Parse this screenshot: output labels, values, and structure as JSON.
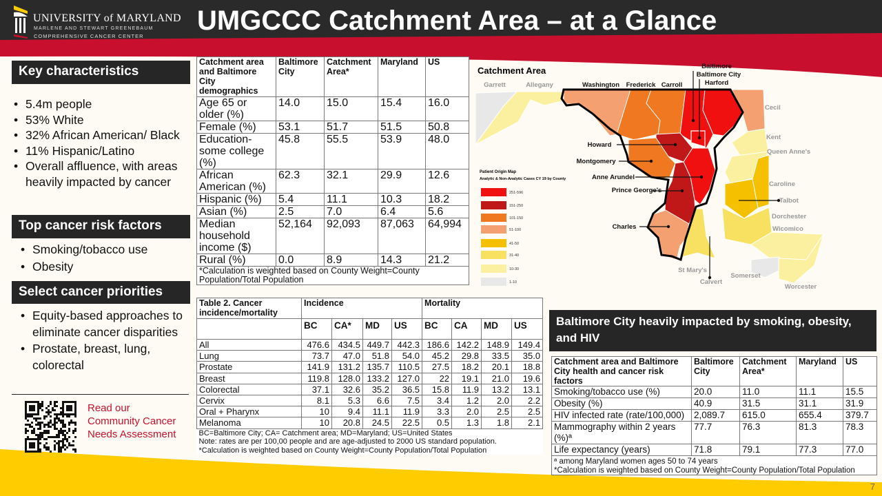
{
  "colors": {
    "header": "#2a2a2a",
    "accent_red": "#c8102e",
    "accent_yellow": "#ffcc00",
    "box": "#262626"
  },
  "logo": {
    "line1": "UNIVERSITY of MARYLAND",
    "line2": "MARLENE AND STEWART GREENEBAUM",
    "line3": "COMPREHENSIVE CANCER CENTER"
  },
  "title": "UMGCCC Catchment Area – at a Glance",
  "key": {
    "heading": "Key characteristics",
    "items": [
      "5.4m people",
      "53% White",
      "32% African American/ Black",
      "11% Hispanic/Latino",
      "Overall affluence, with areas heavily impacted by cancer"
    ]
  },
  "risk": {
    "heading": "Top cancer risk factors",
    "items": [
      "Smoking/tobacco use",
      "Obesity"
    ]
  },
  "priorities": {
    "heading": "Select cancer priorities",
    "items": [
      "Equity-based approaches to eliminate cancer disparities",
      "Prostate, breast, lung, colorectal"
    ]
  },
  "qr": {
    "link_text": "Read our Community Cancer Needs Assessment"
  },
  "demographics": {
    "headers": [
      "Catchment area and Baltimore City demographics",
      "Baltimore City",
      "Catchment Area*",
      "Maryland",
      "US"
    ],
    "rows": [
      [
        "Age 65 or older (%)",
        "14.0",
        "15.0",
        "15.4",
        "16.0"
      ],
      [
        "Female (%)",
        "53.1",
        "51.7",
        "51.5",
        "50.8"
      ],
      [
        "Education-some college (%)",
        "45.8",
        "55.5",
        "53.9",
        "48.0"
      ],
      [
        "African American (%)",
        "62.3",
        "32.1",
        "29.9",
        "12.6"
      ],
      [
        "Hispanic (%)",
        "5.4",
        "11.1",
        "10.3",
        "18.2"
      ],
      [
        "Asian (%)",
        "2.5",
        "7.0",
        "6.4",
        "5.6"
      ],
      [
        "Median household income ($)",
        "52,164",
        "92,093",
        "87,063",
        "64,994"
      ],
      [
        "Rural (%)",
        "0.0",
        "8.9",
        "14.3",
        "21.2"
      ]
    ],
    "footnote": "*Calculation is weighted based on County Weight=County Population/Total Population"
  },
  "cancer": {
    "title": "Table 2. Cancer incidence/mortality",
    "group_incidence": "Incidence",
    "group_mortality": "Mortality",
    "subheaders": [
      "BC",
      "CA*",
      "MD",
      "US",
      "BC",
      "CA",
      "MD",
      "US"
    ],
    "rows": [
      [
        "All",
        "476.6",
        "434.5",
        "449.7",
        "442.3",
        "186.6",
        "142.2",
        "148.9",
        "149.4"
      ],
      [
        "Lung",
        "73.7",
        "47.0",
        "51.8",
        "54.0",
        "45.2",
        "29.8",
        "33.5",
        "35.0"
      ],
      [
        "Prostate",
        "141.9",
        "131.2",
        "135.7",
        "110.5",
        "27.5",
        "18.2",
        "20.1",
        "18.8"
      ],
      [
        "Breast",
        "119.8",
        "128.0",
        "133.2",
        "127.0",
        "22",
        "19.1",
        "21.0",
        "19.6"
      ],
      [
        "Colorectal",
        "37.1",
        "32.6",
        "35.2",
        "36.5",
        "15.8",
        "11.9",
        "13.2",
        "13.1"
      ],
      [
        "Cervix",
        "8.1",
        "5.3",
        "6.6",
        "7.5",
        "3.4",
        "1.2",
        "2.0",
        "2.2"
      ],
      [
        "Oral + Pharynx",
        "10",
        "9.4",
        "11.1",
        "11.9",
        "3.3",
        "2.0",
        "2.5",
        "2.5"
      ],
      [
        "Melanoma",
        "10",
        "20.8",
        "24.5",
        "22.5",
        "0.5",
        "1.3",
        "1.8",
        "2.1"
      ]
    ],
    "footnotes": [
      "BC=Baltimore City; CA= Catchment area; MD=Maryland; US=United States",
      "Note: rates are per 100,00 people and are age-adjusted to 2000 US standard population.",
      "*Calculation is weighted based on County Weight=County Population/Total Population"
    ]
  },
  "map": {
    "title": "Catchment Area",
    "legend_title": "Patient Origin Map",
    "legend_subtitle": "Analytic & Non-Analytic Cases CY 19 by County",
    "legend": [
      {
        "label": "251-596",
        "color": "#f01010"
      },
      {
        "label": "151-250",
        "color": "#c01818"
      },
      {
        "label": "101-150",
        "color": "#f07820"
      },
      {
        "label": "51-100",
        "color": "#f4a070"
      },
      {
        "label": "41-50",
        "color": "#f5c000"
      },
      {
        "label": "31-40",
        "color": "#f8e060"
      },
      {
        "label": "10-30",
        "color": "#fbf0a0"
      },
      {
        "label": "1-10",
        "color": "#e8e8e8"
      }
    ],
    "counties_catchment": [
      "Baltimore",
      "Baltimore City",
      "Harford",
      "Washington",
      "Frederick",
      "Carroll",
      "Howard",
      "Montgomery",
      "Anne Arundel",
      "Prince George's",
      "Charles"
    ],
    "counties_other": [
      "Garrett",
      "Allegany",
      "Cecil",
      "Kent",
      "Queen Anne's",
      "Caroline",
      "Talbot",
      "Dorchester",
      "Wicomico",
      "St Mary's",
      "Calvert",
      "Somerset",
      "Worcester"
    ]
  },
  "baltimore_box": "Baltimore City heavily impacted by smoking, obesity, and HIV",
  "risk_table": {
    "headers": [
      "Catchment area and Baltimore City health and cancer risk factors",
      "Baltimore City",
      "Catchment Area*",
      "Maryland",
      "US"
    ],
    "rows": [
      [
        "Smoking/tobacco use (%)",
        "20.0",
        "11.0",
        "11.1",
        "15.5"
      ],
      [
        "Obesity (%)",
        "40.9",
        "31.5",
        "31.1",
        "31.9"
      ],
      [
        "HIV infected rate (rate/100,000)",
        "2,089.7",
        "615.0",
        "655.4",
        "379.7"
      ],
      [
        "Mammography within 2 years (%)ª",
        "77.7",
        "76.3",
        "81.3",
        "78.3"
      ],
      [
        "Life expectancy (years)",
        "71.8",
        "79.1",
        "77.3",
        "77.0"
      ]
    ],
    "footnotes": [
      "ª among Maryland women ages 50 to 74 years",
      "*Calculation is weighted based on County Weight=County Population/Total Population"
    ]
  },
  "page_number": "7"
}
